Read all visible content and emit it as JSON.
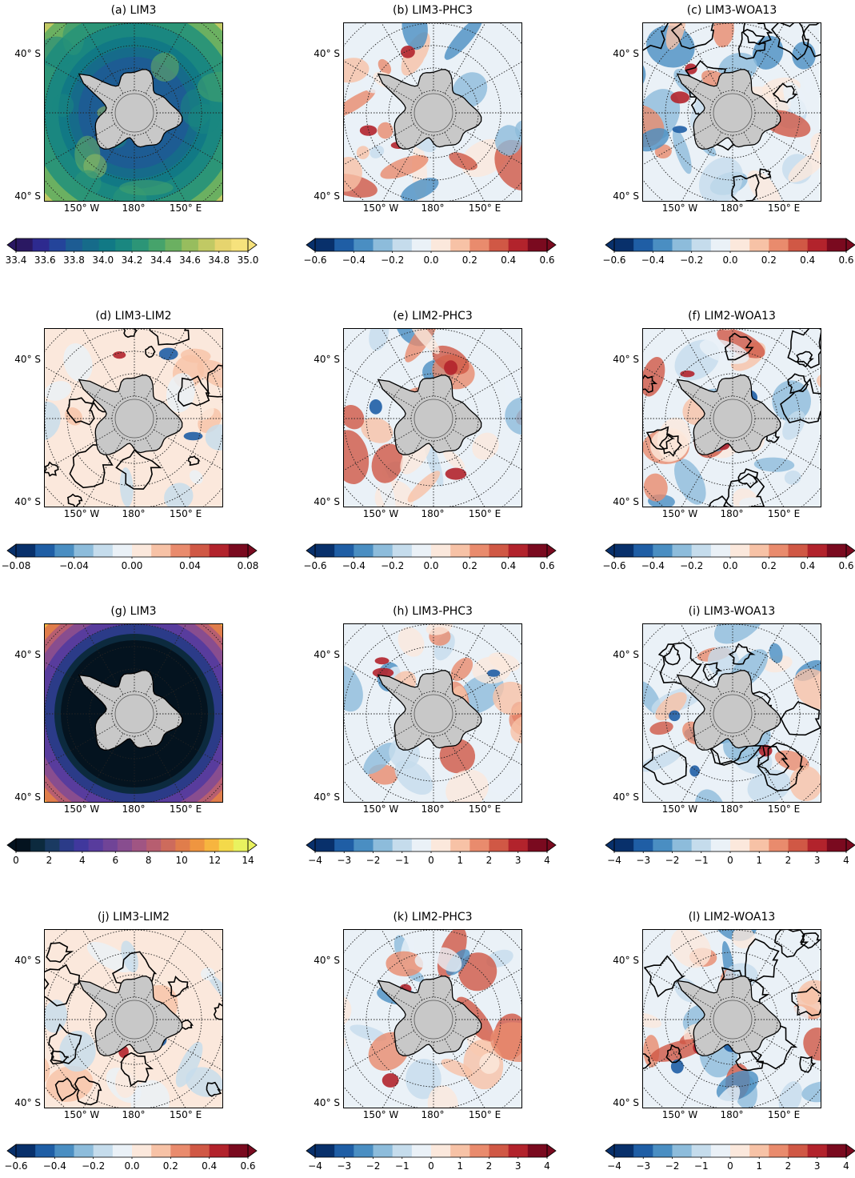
{
  "lat_label": "40° S",
  "lon_labels": [
    "150° W",
    "180°",
    "150° E"
  ],
  "colors": {
    "land": "#c8c8c8",
    "graticule": "#222222",
    "contour": "#000000"
  },
  "colormaps": {
    "haline": [
      "#2a1862",
      "#2d2a8f",
      "#24449a",
      "#1d5c93",
      "#166b8a",
      "#117985",
      "#1a8780",
      "#2c9577",
      "#46a36b",
      "#6bb061",
      "#97bd5e",
      "#c1c964",
      "#e6d46e",
      "#f6e27c"
    ],
    "thermal": [
      "#04131f",
      "#0c2a3e",
      "#1a3a62",
      "#2b3b88",
      "#40389d",
      "#583c9d",
      "#704497",
      "#884d8f",
      "#a05583",
      "#b75e70",
      "#cd6b5c",
      "#e07d4b",
      "#ef9540",
      "#f7b53f",
      "#f4d94a",
      "#e9f25f"
    ],
    "rdbu": [
      "#08306b",
      "#1f5ea5",
      "#4a8ec2",
      "#8dbcdb",
      "#c5dcec",
      "#eaf1f7",
      "#fbe8dc",
      "#f7c2a6",
      "#e98b6d",
      "#d05845",
      "#b2232c",
      "#7a0a1f"
    ]
  },
  "rows": [
    {
      "panels": [
        {
          "title": "(a) LIM3",
          "field": "mean_s",
          "contours": false
        },
        {
          "title": "(b) LIM3-PHC3",
          "field": "diff_s",
          "contours": false
        },
        {
          "title": "(c) LIM3-WOA13",
          "field": "diff_s",
          "contours": true
        }
      ],
      "colorbars": [
        {
          "cmap": "haline",
          "ticks": [
            "33.4",
            "33.6",
            "33.8",
            "34.0",
            "34.2",
            "34.4",
            "34.6",
            "34.8",
            "35.0"
          ],
          "extend_low": true,
          "extend_high": true
        },
        {
          "cmap": "rdbu",
          "ticks": [
            "−0.6",
            "−0.4",
            "−0.2",
            "0.0",
            "0.2",
            "0.4",
            "0.6"
          ],
          "extend_low": true,
          "extend_high": true
        },
        {
          "cmap": "rdbu",
          "ticks": [
            "−0.6",
            "−0.4",
            "−0.2",
            "0.0",
            "0.2",
            "0.4",
            "0.6"
          ],
          "extend_low": true,
          "extend_high": true
        }
      ]
    },
    {
      "panels": [
        {
          "title": "(d) LIM3-LIM2",
          "field": "small_s",
          "contours": true
        },
        {
          "title": "(e) LIM2-PHC3",
          "field": "diff_s",
          "contours": false
        },
        {
          "title": "(f) LIM2-WOA13",
          "field": "diff_s",
          "contours": true
        }
      ],
      "colorbars": [
        {
          "cmap": "rdbu",
          "ticks": [
            "−0.08",
            "−0.04",
            "0.00",
            "0.04",
            "0.08"
          ],
          "extend_low": true,
          "extend_high": true
        },
        {
          "cmap": "rdbu",
          "ticks": [
            "−0.6",
            "−0.4",
            "−0.2",
            "0.0",
            "0.2",
            "0.4",
            "0.6"
          ],
          "extend_low": true,
          "extend_high": true
        },
        {
          "cmap": "rdbu",
          "ticks": [
            "−0.6",
            "−0.4",
            "−0.2",
            "0.0",
            "0.2",
            "0.4",
            "0.6"
          ],
          "extend_low": true,
          "extend_high": true
        }
      ]
    },
    {
      "panels": [
        {
          "title": "(g) LIM3",
          "field": "mean_t",
          "contours": false
        },
        {
          "title": "(h) LIM3-PHC3",
          "field": "diff_t",
          "contours": false
        },
        {
          "title": "(i) LIM3-WOA13",
          "field": "diff_t",
          "contours": true
        }
      ],
      "colorbars": [
        {
          "cmap": "thermal",
          "ticks": [
            "0",
            "2",
            "4",
            "6",
            "8",
            "10",
            "12",
            "14"
          ],
          "extend_low": true,
          "extend_high": true
        },
        {
          "cmap": "rdbu",
          "ticks": [
            "−4",
            "−3",
            "−2",
            "−1",
            "0",
            "1",
            "2",
            "3",
            "4"
          ],
          "extend_low": true,
          "extend_high": true
        },
        {
          "cmap": "rdbu",
          "ticks": [
            "−4",
            "−3",
            "−2",
            "−1",
            "0",
            "1",
            "2",
            "3",
            "4"
          ],
          "extend_low": true,
          "extend_high": true
        }
      ]
    },
    {
      "panels": [
        {
          "title": "(j) LIM3-LIM2",
          "field": "small_t",
          "contours": true
        },
        {
          "title": "(k) LIM2-PHC3",
          "field": "diff_t",
          "contours": false
        },
        {
          "title": "(l) LIM2-WOA13",
          "field": "diff_t",
          "contours": true
        }
      ],
      "colorbars": [
        {
          "cmap": "rdbu",
          "ticks": [
            "−0.6",
            "−0.4",
            "−0.2",
            "0.0",
            "0.2",
            "0.4",
            "0.6"
          ],
          "extend_low": true,
          "extend_high": true
        },
        {
          "cmap": "rdbu",
          "ticks": [
            "−4",
            "−3",
            "−2",
            "−1",
            "0",
            "1",
            "2",
            "3",
            "4"
          ],
          "extend_low": true,
          "extend_high": true
        },
        {
          "cmap": "rdbu",
          "ticks": [
            "−4",
            "−3",
            "−2",
            "−1",
            "0",
            "1",
            "2",
            "3",
            "4"
          ],
          "extend_low": true,
          "extend_high": true
        }
      ]
    }
  ]
}
